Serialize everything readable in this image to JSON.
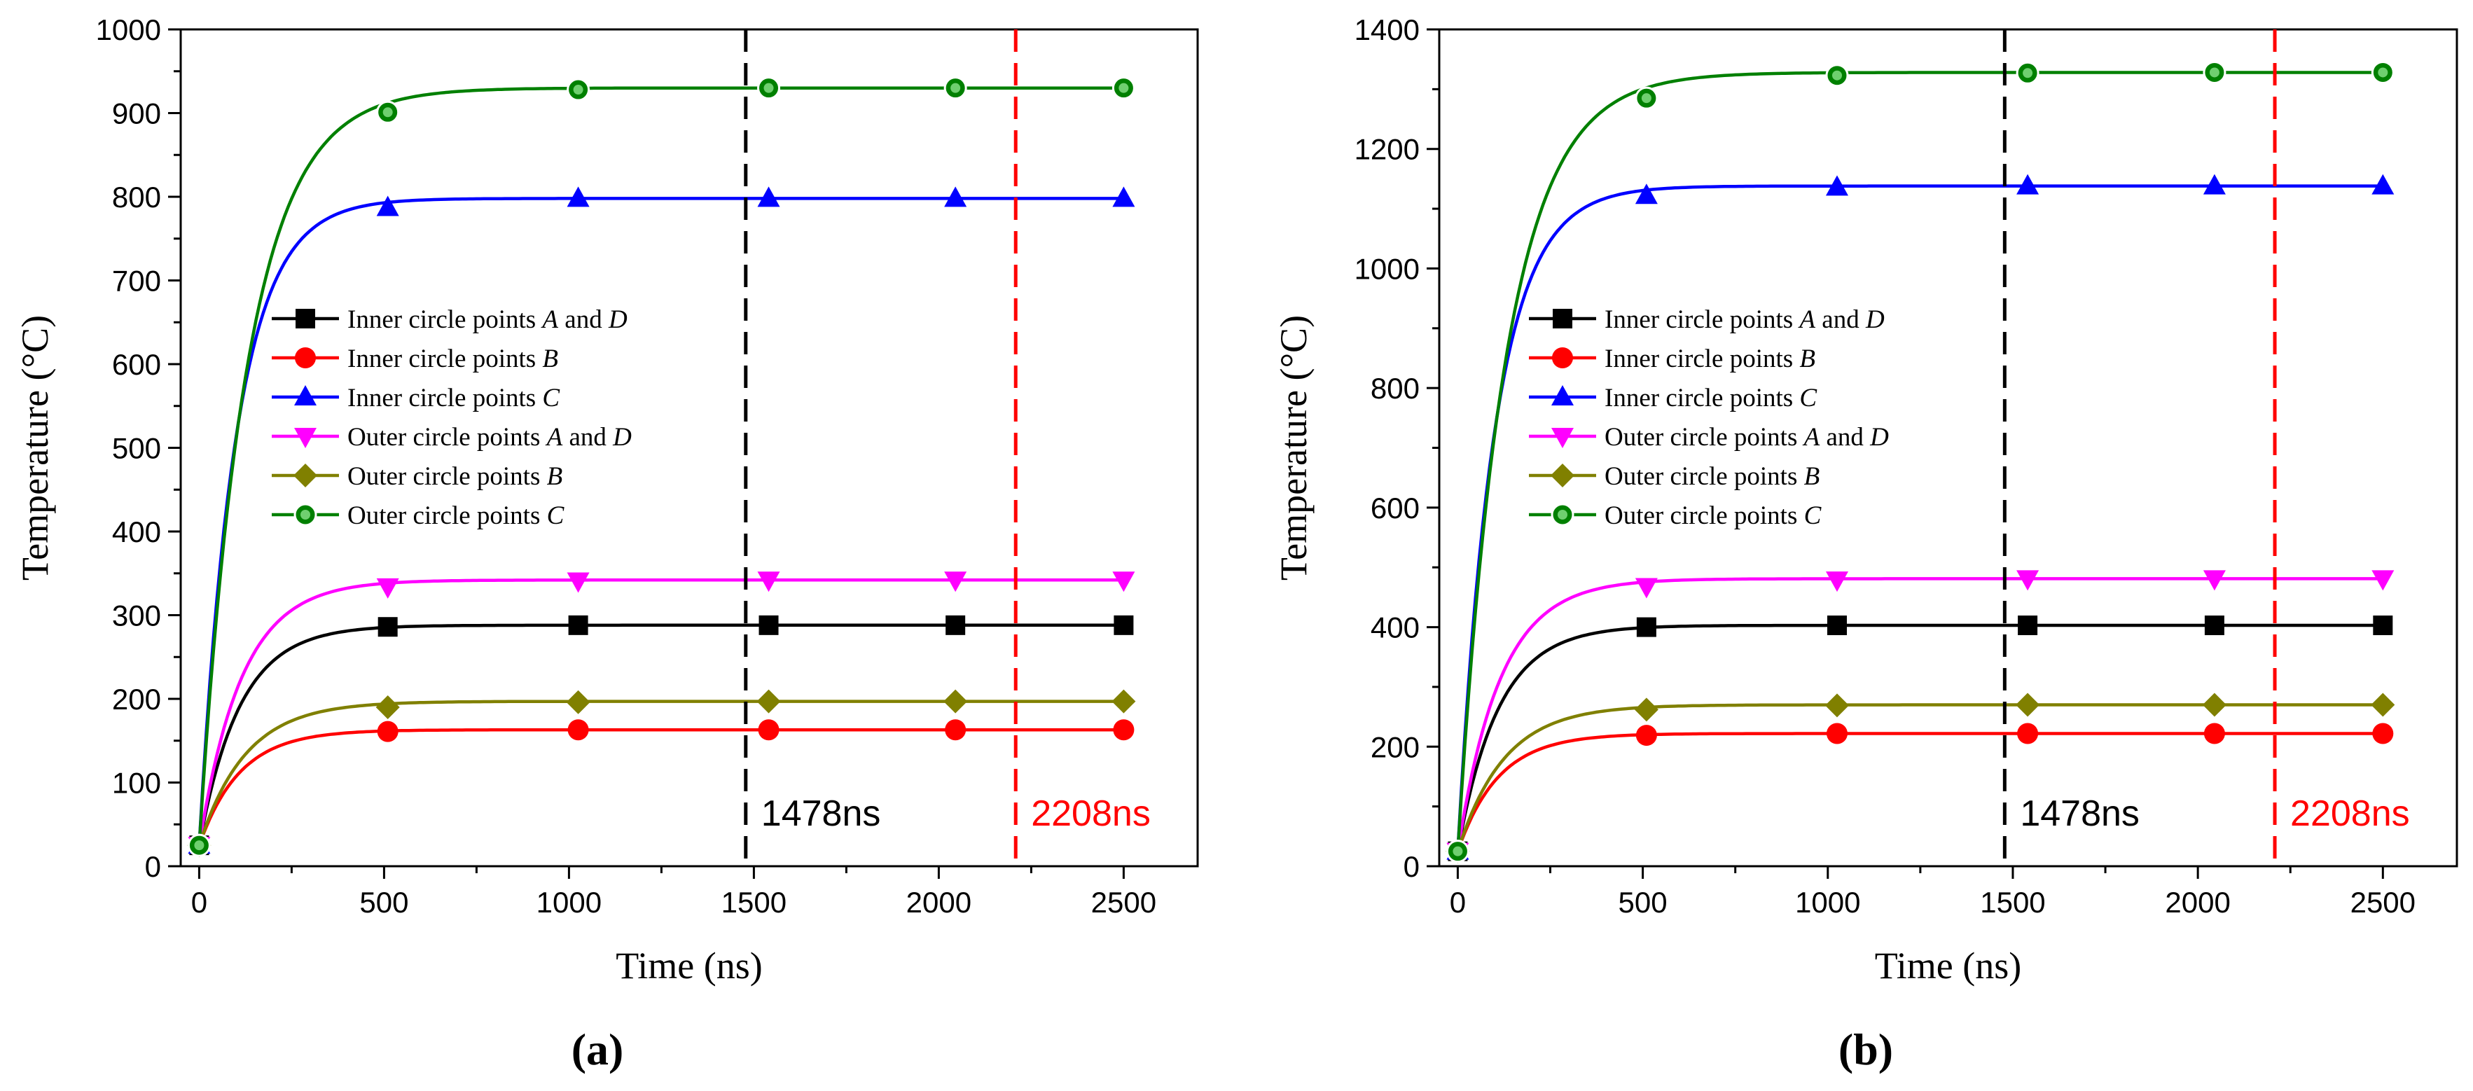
{
  "figure": {
    "labels": [
      "(a)",
      "(b)"
    ]
  },
  "chart_data": [
    {
      "type": "line",
      "panel_label_letter": "a",
      "xlabel": "Time (ns)",
      "ylabel": "Temperature (°C)",
      "xlim": [
        -50,
        2700
      ],
      "ylim": [
        0,
        1000
      ],
      "xticks": [
        0,
        500,
        1000,
        1500,
        2000,
        2500
      ],
      "yticks": [
        0,
        100,
        200,
        300,
        400,
        500,
        600,
        700,
        800,
        900,
        1000
      ],
      "grid": false,
      "legend_position": "center-left",
      "marker_x": [
        0,
        510,
        1025,
        1540,
        2045,
        2500
      ],
      "series": [
        {
          "name": "Inner circle points A and D",
          "prefix": "Inner circle points ",
          "italic1": "A",
          "mid": " and ",
          "italic2": "D",
          "color": "#000000",
          "marker": "square",
          "start": 25,
          "plateau": 288,
          "tau": 110,
          "marker_values": [
            25,
            286,
            288,
            288,
            288,
            288
          ]
        },
        {
          "name": "Inner circle points B",
          "prefix": "Inner circle points ",
          "italic1": "B",
          "mid": "",
          "italic2": "",
          "color": "#ff0000",
          "marker": "circle",
          "start": 25,
          "plateau": 163,
          "tau": 110,
          "marker_values": [
            25,
            161,
            163,
            163,
            163,
            163
          ]
        },
        {
          "name": "Inner circle points C",
          "prefix": "Inner circle points ",
          "italic1": "C",
          "mid": "",
          "italic2": "",
          "color": "#0000ff",
          "marker": "triangle-up",
          "start": 25,
          "plateau": 798,
          "tau": 100,
          "marker_values": [
            25,
            787,
            798,
            798,
            798,
            798
          ]
        },
        {
          "name": "Outer circle points A and D",
          "prefix": "Outer circle points ",
          "italic1": "A",
          "mid": " and ",
          "italic2": "D",
          "color": "#ff00ff",
          "marker": "triangle-down",
          "start": 25,
          "plateau": 342,
          "tau": 115,
          "marker_values": [
            25,
            334,
            341,
            342,
            342,
            342
          ]
        },
        {
          "name": "Outer circle points B",
          "prefix": "Outer circle points ",
          "italic1": "B",
          "mid": "",
          "italic2": "",
          "color": "#808000",
          "marker": "diamond",
          "start": 25,
          "plateau": 197,
          "tau": 125,
          "marker_values": [
            25,
            190,
            196,
            197,
            197,
            197
          ]
        },
        {
          "name": "Outer circle points C",
          "prefix": "Outer circle points ",
          "italic1": "C",
          "mid": "",
          "italic2": "",
          "color": "#008000",
          "marker": "circle-ring",
          "start": 25,
          "plateau": 930,
          "tau": 130,
          "marker_values": [
            25,
            901,
            928,
            930,
            930,
            930
          ]
        }
      ],
      "vlines": [
        {
          "x": 1478,
          "label": "1478ns",
          "color": "#000000"
        },
        {
          "x": 2208,
          "label": "2208ns",
          "color": "#ff0000"
        }
      ]
    },
    {
      "type": "line",
      "panel_label_letter": "b",
      "xlabel": "Time (ns)",
      "ylabel": "Temperature (°C)",
      "xlim": [
        -50,
        2700
      ],
      "ylim": [
        0,
        1400
      ],
      "xticks": [
        0,
        500,
        1000,
        1500,
        2000,
        2500
      ],
      "yticks": [
        0,
        200,
        400,
        600,
        800,
        1000,
        1200,
        1400
      ],
      "grid": false,
      "legend_position": "center-left",
      "marker_x": [
        0,
        510,
        1025,
        1540,
        2045,
        2500
      ],
      "series": [
        {
          "name": "Inner circle points A and D",
          "prefix": "Inner circle points ",
          "italic1": "A",
          "mid": " and ",
          "italic2": "D",
          "color": "#000000",
          "marker": "square",
          "start": 25,
          "plateau": 403,
          "tau": 110,
          "marker_values": [
            25,
            400,
            403,
            403,
            403,
            403
          ]
        },
        {
          "name": "Inner circle points B",
          "prefix": "Inner circle points ",
          "italic1": "B",
          "mid": "",
          "italic2": "",
          "color": "#ff0000",
          "marker": "circle",
          "start": 25,
          "plateau": 222,
          "tau": 110,
          "marker_values": [
            25,
            219,
            222,
            222,
            222,
            222
          ]
        },
        {
          "name": "Inner circle points C",
          "prefix": "Inner circle points ",
          "italic1": "C",
          "mid": "",
          "italic2": "",
          "color": "#0000ff",
          "marker": "triangle-up",
          "start": 25,
          "plateau": 1138,
          "tau": 100,
          "marker_values": [
            25,
            1122,
            1136,
            1138,
            1138,
            1138
          ]
        },
        {
          "name": "Outer circle points A and D",
          "prefix": "Outer circle points ",
          "italic1": "A",
          "mid": " and ",
          "italic2": "D",
          "color": "#ff00ff",
          "marker": "triangle-down",
          "start": 25,
          "plateau": 481,
          "tau": 115,
          "marker_values": [
            25,
            468,
            479,
            481,
            481,
            481
          ]
        },
        {
          "name": "Outer circle points B",
          "prefix": "Outer circle points ",
          "italic1": "B",
          "mid": "",
          "italic2": "",
          "color": "#808000",
          "marker": "diamond",
          "start": 25,
          "plateau": 270,
          "tau": 125,
          "marker_values": [
            25,
            262,
            269,
            270,
            270,
            270
          ]
        },
        {
          "name": "Outer circle points C",
          "prefix": "Outer circle points ",
          "italic1": "C",
          "mid": "",
          "italic2": "",
          "color": "#008000",
          "marker": "circle-ring",
          "start": 25,
          "plateau": 1328,
          "tau": 130,
          "marker_values": [
            25,
            1285,
            1323,
            1327,
            1328,
            1328
          ]
        }
      ],
      "vlines": [
        {
          "x": 1478,
          "label": "1478ns",
          "color": "#000000"
        },
        {
          "x": 2208,
          "label": "2208ns",
          "color": "#ff0000"
        }
      ]
    }
  ]
}
